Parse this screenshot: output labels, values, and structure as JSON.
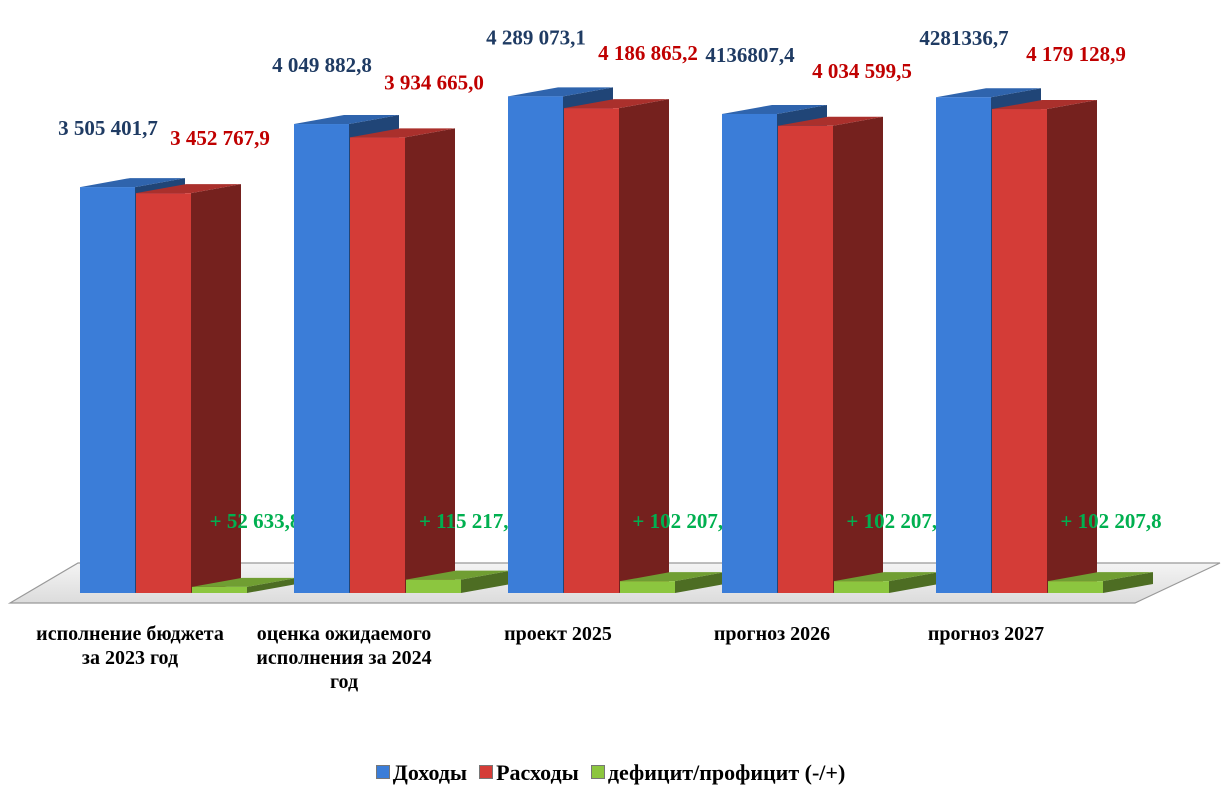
{
  "chart_data": {
    "type": "bar3d",
    "categories": [
      "исполнение бюджета за 2023 год",
      "оценка ожидаемого исполнения за 2024 год",
      "проект 2025",
      "прогноз 2026",
      "прогноз 2027"
    ],
    "series": [
      {
        "name": "Доходы",
        "color": "#3b7dd8",
        "label_color": "#1f3b63",
        "values": [
          3505401.7,
          4049882.8,
          4289073.1,
          4136807.4,
          4281336.7
        ],
        "value_labels": [
          "3 505 401,7",
          "4 049 882,8",
          "4 289 073,1",
          "4136807,4",
          "4281336,7"
        ]
      },
      {
        "name": "Расходы",
        "color": "#d43c37",
        "label_color": "#c00000",
        "values": [
          3452767.9,
          3934665.0,
          4186865.2,
          4034599.5,
          4179128.9
        ],
        "value_labels": [
          "3 452 767,9",
          "3 934 665,0",
          "4 186 865,2",
          "4 034 599,5",
          "4 179 128,9"
        ]
      },
      {
        "name": "дефицит/профицит (-/+)",
        "color": "#8cc63f",
        "label_color": "#00b050",
        "values": [
          52633.8,
          115217.8,
          102207.8,
          102207.8,
          102207.8
        ],
        "value_labels": [
          "+ 52 633,8",
          "+ 115 217,8",
          "+ 102 207,8",
          "+ 102 207,8",
          "+ 102 207,8"
        ]
      }
    ],
    "legend": "bottom"
  }
}
